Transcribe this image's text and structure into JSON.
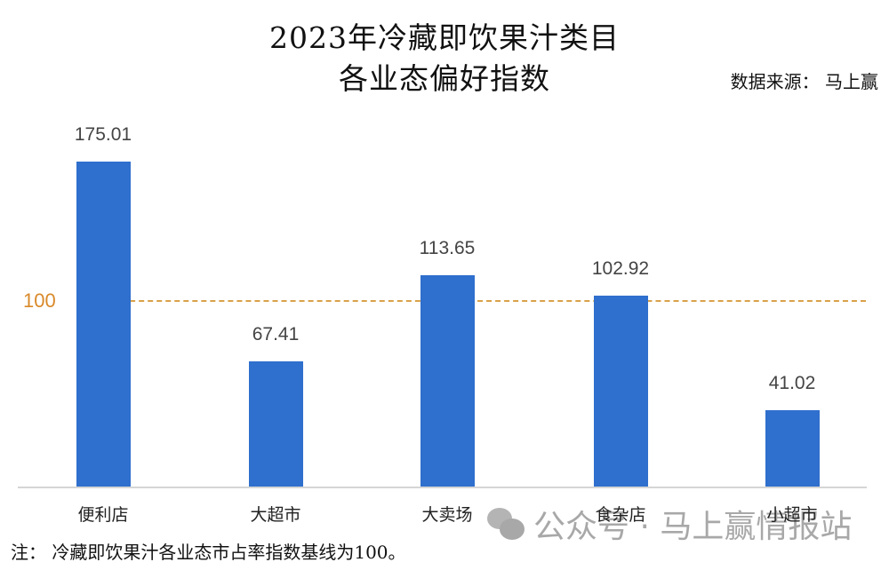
{
  "header": {
    "title_line1": "2023年冷藏即饮果汁类目",
    "title_line2": "各业态偏好指数",
    "source": "数据来源： 马上赢"
  },
  "reference": {
    "label": "100",
    "value": 100,
    "color": "#d9a24a"
  },
  "note": "注： 冷藏即饮果汁各业态市占率指数基线为100。",
  "watermark": {
    "icon": "wechat-icon",
    "text": "公众号 · 马上赢情报站"
  },
  "colors": {
    "bar": "#2f6fcd",
    "reference": "#d9a24a"
  },
  "chart_data": {
    "type": "bar",
    "title": "2023年冷藏即饮果汁类目各业态偏好指数",
    "categories": [
      "便利店",
      "大超市",
      "大卖场",
      "食杂店",
      "小超市"
    ],
    "values": [
      175.01,
      67.41,
      113.65,
      102.92,
      41.02
    ],
    "value_labels": [
      "175.01",
      "67.41",
      "113.65",
      "102.92",
      "41.02"
    ],
    "xlabel": "",
    "ylabel": "",
    "ylim": [
      0,
      180
    ],
    "reference_line": {
      "y": 100,
      "label": "100",
      "style": "dashed"
    },
    "grid": false,
    "legend": "none",
    "annotations": [
      "数据来源： 马上赢",
      "注： 冷藏即饮果汁各业态市占率指数基线为100。"
    ]
  }
}
